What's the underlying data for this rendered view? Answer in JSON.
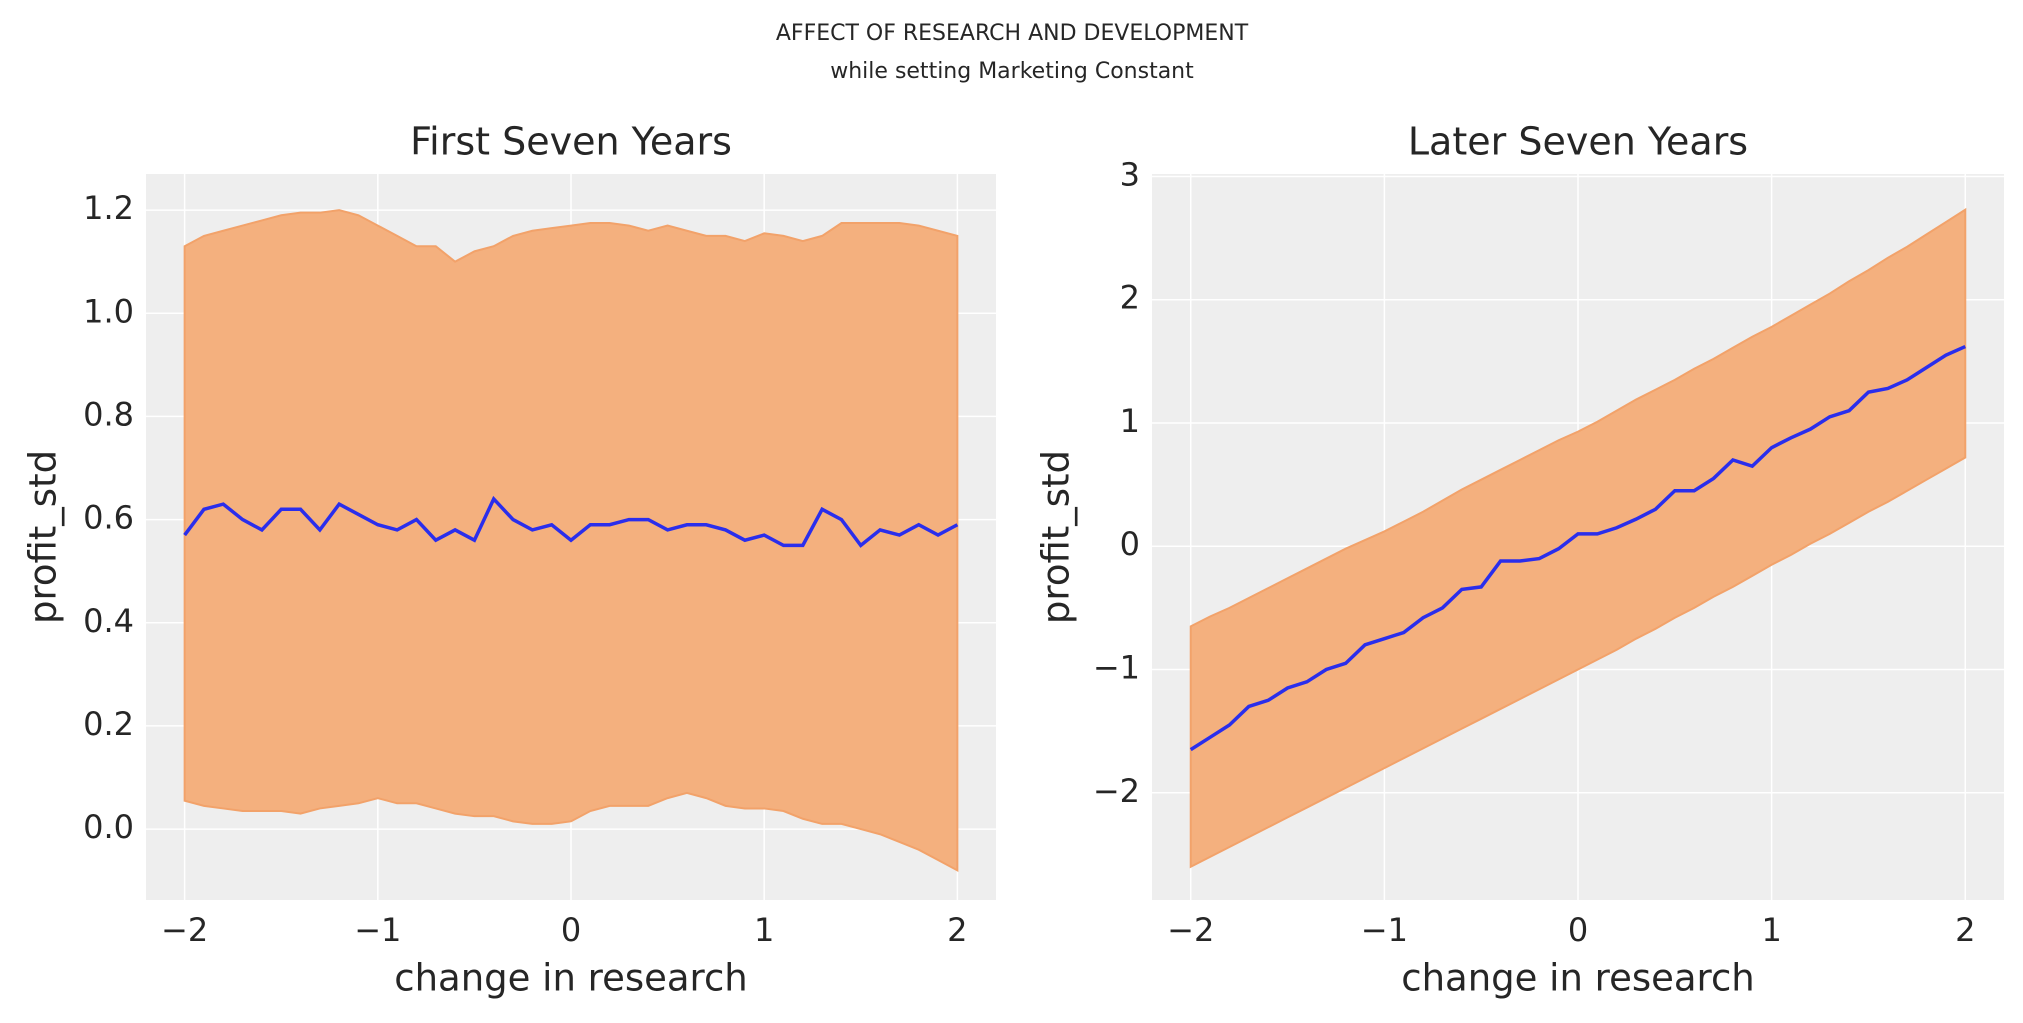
{
  "title": "AFFECT OF RESEARCH AND DEVELOPMENT",
  "subtitle": "while setting Marketing Constant",
  "chart_data": [
    {
      "type": "line",
      "title": "First Seven Years",
      "x_label": "change in research",
      "y_label": "profit_std",
      "x": [
        -2,
        -1.9,
        -1.8,
        -1.7,
        -1.6,
        -1.5,
        -1.4,
        -1.3,
        -1.2,
        -1.1,
        -1,
        -0.9,
        -0.8,
        -0.7,
        -0.6,
        -0.5,
        -0.4,
        -0.3,
        -0.2,
        -0.1,
        0,
        0.1,
        0.2,
        0.3,
        0.4,
        0.5,
        0.6,
        0.7,
        0.8,
        0.9,
        1,
        1.1,
        1.2,
        1.3,
        1.4,
        1.5,
        1.6,
        1.7,
        1.8,
        1.9,
        2
      ],
      "series": [
        {
          "color": "#2a2eec",
          "values": [
            0.57,
            0.62,
            0.63,
            0.6,
            0.58,
            0.62,
            0.62,
            0.58,
            0.63,
            0.61,
            0.59,
            0.58,
            0.6,
            0.56,
            0.58,
            0.56,
            0.64,
            0.6,
            0.58,
            0.59,
            0.56,
            0.59,
            0.59,
            0.6,
            0.6,
            0.58,
            0.59,
            0.59,
            0.58,
            0.56,
            0.57,
            0.55,
            0.55,
            0.62,
            0.6,
            0.55,
            0.58,
            0.57,
            0.59,
            0.57,
            0.59
          ]
        }
      ],
      "band": {
        "color": "#f4b07e",
        "edge": "#f2a26a",
        "lower": [
          0.055,
          0.045,
          0.04,
          0.035,
          0.035,
          0.035,
          0.03,
          0.04,
          0.045,
          0.05,
          0.06,
          0.05,
          0.05,
          0.04,
          0.03,
          0.025,
          0.025,
          0.015,
          0.01,
          0.01,
          0.015,
          0.035,
          0.045,
          0.045,
          0.045,
          0.06,
          0.07,
          0.06,
          0.045,
          0.04,
          0.04,
          0.035,
          0.02,
          0.01,
          0.01,
          0.0,
          -0.01,
          -0.025,
          -0.04,
          -0.06,
          -0.08
        ],
        "upper": [
          1.13,
          1.15,
          1.16,
          1.17,
          1.18,
          1.19,
          1.195,
          1.195,
          1.2,
          1.19,
          1.17,
          1.15,
          1.13,
          1.13,
          1.1,
          1.12,
          1.13,
          1.15,
          1.16,
          1.165,
          1.17,
          1.175,
          1.175,
          1.17,
          1.16,
          1.17,
          1.16,
          1.15,
          1.15,
          1.14,
          1.155,
          1.15,
          1.14,
          1.15,
          1.175,
          1.175,
          1.175,
          1.175,
          1.17,
          1.16,
          1.15
        ]
      },
      "xlim": [
        -2.2,
        2.2
      ],
      "ylim": [
        -0.1375,
        1.27
      ],
      "xticks": [
        {
          "value": -2,
          "label": "−2"
        },
        {
          "value": -1,
          "label": "−1"
        },
        0,
        1,
        2
      ],
      "yticks": [
        {
          "value": 0,
          "label": "0.0"
        },
        0.2,
        0.4,
        0.6,
        0.8,
        {
          "value": 1,
          "label": "1.0"
        },
        1.2
      ],
      "grid": true
    },
    {
      "type": "line",
      "title": "Later Seven Years",
      "x_label": "change in research",
      "y_label": "profit_std",
      "x": [
        -2,
        -1.9,
        -1.8,
        -1.7,
        -1.6,
        -1.5,
        -1.4,
        -1.3,
        -1.2,
        -1.1,
        -1,
        -0.9,
        -0.8,
        -0.7,
        -0.6,
        -0.5,
        -0.4,
        -0.3,
        -0.2,
        -0.1,
        0,
        0.1,
        0.2,
        0.3,
        0.4,
        0.5,
        0.6,
        0.7,
        0.8,
        0.9,
        1,
        1.1,
        1.2,
        1.3,
        1.4,
        1.5,
        1.6,
        1.7,
        1.8,
        1.9,
        2
      ],
      "series": [
        {
          "color": "#2a2eec",
          "values": [
            -1.65,
            -1.55,
            -1.45,
            -1.3,
            -1.25,
            -1.15,
            -1.1,
            -1.0,
            -0.95,
            -0.8,
            -0.75,
            -0.7,
            -0.58,
            -0.5,
            -0.35,
            -0.33,
            -0.12,
            -0.12,
            -0.1,
            -0.02,
            0.1,
            0.1,
            0.15,
            0.22,
            0.3,
            0.45,
            0.45,
            0.55,
            0.7,
            0.65,
            0.8,
            0.88,
            0.95,
            1.05,
            1.1,
            1.25,
            1.28,
            1.35,
            1.45,
            1.55,
            1.62
          ]
        }
      ],
      "band": {
        "color": "#f4b07e",
        "edge": "#f2a26a",
        "lower": [
          -2.6,
          -2.52,
          -2.44,
          -2.36,
          -2.28,
          -2.2,
          -2.12,
          -2.04,
          -1.96,
          -1.88,
          -1.8,
          -1.72,
          -1.64,
          -1.56,
          -1.48,
          -1.4,
          -1.32,
          -1.24,
          -1.16,
          -1.08,
          -1.0,
          -0.92,
          -0.84,
          -0.75,
          -0.67,
          -0.58,
          -0.5,
          -0.41,
          -0.33,
          -0.24,
          -0.15,
          -0.07,
          0.02,
          0.1,
          0.19,
          0.28,
          0.36,
          0.45,
          0.54,
          0.63,
          0.72
        ],
        "upper": [
          -0.65,
          -0.57,
          -0.5,
          -0.42,
          -0.34,
          -0.26,
          -0.18,
          -0.1,
          -0.02,
          0.05,
          0.12,
          0.2,
          0.28,
          0.37,
          0.46,
          0.54,
          0.62,
          0.7,
          0.78,
          0.86,
          0.93,
          1.01,
          1.1,
          1.19,
          1.27,
          1.35,
          1.44,
          1.52,
          1.61,
          1.7,
          1.78,
          1.87,
          1.96,
          2.05,
          2.15,
          2.24,
          2.34,
          2.43,
          2.53,
          2.63,
          2.73
        ]
      },
      "xlim": [
        -2.2,
        2.2
      ],
      "ylim": [
        -2.87,
        3.02
      ],
      "xticks": [
        {
          "value": -2,
          "label": "−2"
        },
        {
          "value": -1,
          "label": "−1"
        },
        0,
        1,
        2
      ],
      "yticks": [
        {
          "value": -2,
          "label": "−2"
        },
        {
          "value": -1,
          "label": "−1"
        },
        0,
        1,
        2,
        3
      ],
      "grid": true
    }
  ]
}
